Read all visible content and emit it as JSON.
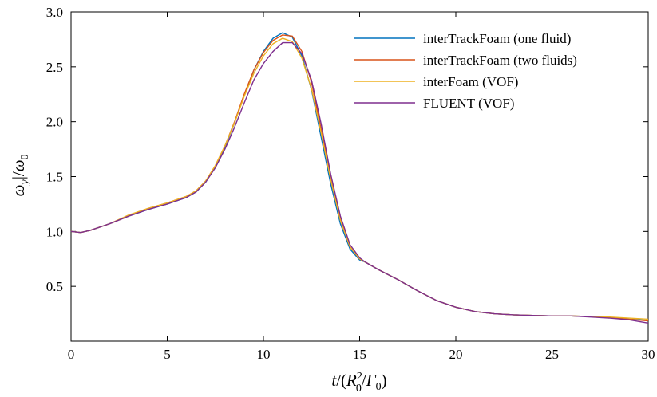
{
  "chart_data": {
    "type": "line",
    "xlabel": "t/(R_0^2/Γ_0)",
    "ylabel": "|ω_y|/ω_0",
    "xlim": [
      0,
      30
    ],
    "ylim": [
      0,
      3.0
    ],
    "x_ticks": [
      0,
      5,
      10,
      15,
      20,
      25,
      30
    ],
    "x_tick_labels": [
      "0",
      "5",
      "10",
      "15",
      "20",
      "25",
      "30"
    ],
    "y_ticks": [
      0.5,
      1.0,
      1.5,
      2.0,
      2.5,
      3.0
    ],
    "y_tick_labels": [
      "0.5",
      "1.0",
      "1.5",
      "2.0",
      "2.5",
      "3.0"
    ],
    "grid": false,
    "legend_position": "top-right",
    "series": [
      {
        "name": "interTrackFoam (one fluid)",
        "color": "#0072BD",
        "x": [
          0,
          0.5,
          1,
          2,
          3,
          4,
          5,
          6,
          6.5,
          7,
          7.5,
          8,
          8.5,
          9,
          9.5,
          10,
          10.5,
          11,
          11.5,
          12,
          12.5,
          13,
          13.5,
          14,
          14.5,
          15,
          15.3,
          16,
          17,
          18,
          19,
          20,
          21,
          22,
          23,
          24,
          25,
          26,
          27,
          28,
          29,
          30
        ],
        "y": [
          1.0,
          0.99,
          1.01,
          1.07,
          1.14,
          1.2,
          1.25,
          1.31,
          1.36,
          1.45,
          1.59,
          1.77,
          1.99,
          2.24,
          2.47,
          2.64,
          2.76,
          2.81,
          2.77,
          2.6,
          2.29,
          1.86,
          1.43,
          1.07,
          0.84,
          0.74,
          0.72,
          0.65,
          0.56,
          0.46,
          0.37,
          0.31,
          0.27,
          0.25,
          0.24,
          0.235,
          0.23,
          0.23,
          0.225,
          0.215,
          0.2,
          0.19
        ]
      },
      {
        "name": "interTrackFoam (two fluids)",
        "color": "#D95319",
        "x": [
          0,
          0.5,
          1,
          2,
          3,
          4,
          5,
          6,
          6.5,
          7,
          7.5,
          8,
          8.5,
          9,
          9.5,
          10,
          10.5,
          11,
          11.5,
          12,
          12.5,
          13,
          13.5,
          14,
          14.5,
          15,
          15.3,
          16,
          17,
          18,
          19,
          20,
          21,
          22,
          23,
          24,
          25,
          26,
          27,
          28,
          29,
          30
        ],
        "y": [
          1.0,
          0.99,
          1.01,
          1.07,
          1.14,
          1.21,
          1.26,
          1.32,
          1.37,
          1.46,
          1.6,
          1.78,
          2.0,
          2.25,
          2.47,
          2.63,
          2.74,
          2.79,
          2.78,
          2.64,
          2.36,
          1.93,
          1.48,
          1.11,
          0.86,
          0.75,
          0.72,
          0.65,
          0.56,
          0.46,
          0.37,
          0.31,
          0.27,
          0.25,
          0.24,
          0.235,
          0.23,
          0.23,
          0.225,
          0.215,
          0.2,
          0.185
        ]
      },
      {
        "name": "interFoam (VOF)",
        "color": "#EDB120",
        "x": [
          0,
          0.5,
          1,
          2,
          3,
          4,
          5,
          6,
          6.5,
          7,
          7.5,
          8,
          8.5,
          9,
          9.5,
          10,
          10.5,
          11,
          11.5,
          12,
          12.5,
          13,
          13.5,
          14,
          14.5,
          15,
          15.3,
          16,
          17,
          18,
          19,
          20,
          21,
          22,
          23,
          24,
          25,
          26,
          27,
          28,
          29,
          30
        ],
        "y": [
          1.0,
          0.99,
          1.01,
          1.07,
          1.15,
          1.21,
          1.26,
          1.32,
          1.37,
          1.46,
          1.6,
          1.78,
          1.99,
          2.23,
          2.44,
          2.6,
          2.71,
          2.76,
          2.73,
          2.58,
          2.3,
          1.9,
          1.47,
          1.1,
          0.86,
          0.75,
          0.72,
          0.65,
          0.56,
          0.46,
          0.37,
          0.31,
          0.27,
          0.25,
          0.24,
          0.235,
          0.23,
          0.23,
          0.225,
          0.22,
          0.21,
          0.2
        ]
      },
      {
        "name": "FLUENT (VOF)",
        "color": "#7E2F8E",
        "x": [
          0,
          0.5,
          1,
          2,
          3,
          4,
          5,
          6,
          6.5,
          7,
          7.5,
          8,
          8.5,
          9,
          9.5,
          10,
          10.5,
          11,
          11.5,
          12,
          12.5,
          13,
          13.5,
          14,
          14.5,
          15,
          15.3,
          16,
          17,
          18,
          19,
          20,
          21,
          22,
          23,
          24,
          25,
          26,
          27,
          28,
          29,
          30
        ],
        "y": [
          1.0,
          0.99,
          1.01,
          1.07,
          1.14,
          1.2,
          1.25,
          1.31,
          1.36,
          1.45,
          1.58,
          1.75,
          1.95,
          2.17,
          2.38,
          2.53,
          2.64,
          2.72,
          2.72,
          2.62,
          2.38,
          1.98,
          1.52,
          1.14,
          0.88,
          0.76,
          0.72,
          0.65,
          0.56,
          0.46,
          0.37,
          0.31,
          0.27,
          0.25,
          0.24,
          0.235,
          0.23,
          0.23,
          0.22,
          0.21,
          0.195,
          0.165
        ]
      }
    ]
  }
}
